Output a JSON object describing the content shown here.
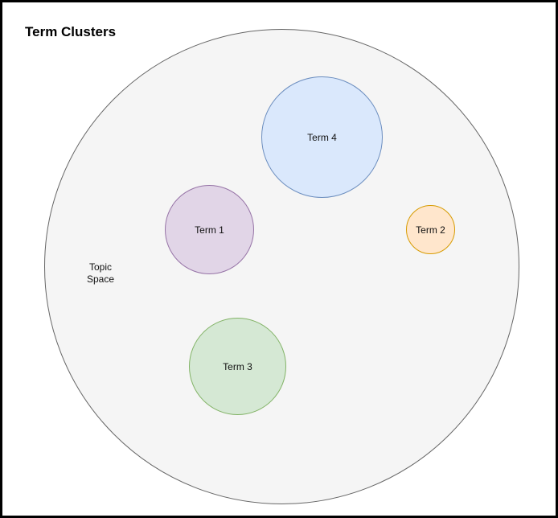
{
  "title": "Term Clusters",
  "topic_space": {
    "label_line1": "Topic",
    "label_line2": "Space",
    "fill": "#f5f5f5",
    "stroke": "#666666"
  },
  "terms": [
    {
      "label": "Term 4",
      "fill": "#dae8fc",
      "stroke": "#6c8ebf"
    },
    {
      "label": "Term 1",
      "fill": "#e1d5e7",
      "stroke": "#9673a6"
    },
    {
      "label": "Term 2",
      "fill": "#ffe6cc",
      "stroke": "#d79b00"
    },
    {
      "label": "Term 3",
      "fill": "#d5e8d4",
      "stroke": "#82b366"
    }
  ]
}
